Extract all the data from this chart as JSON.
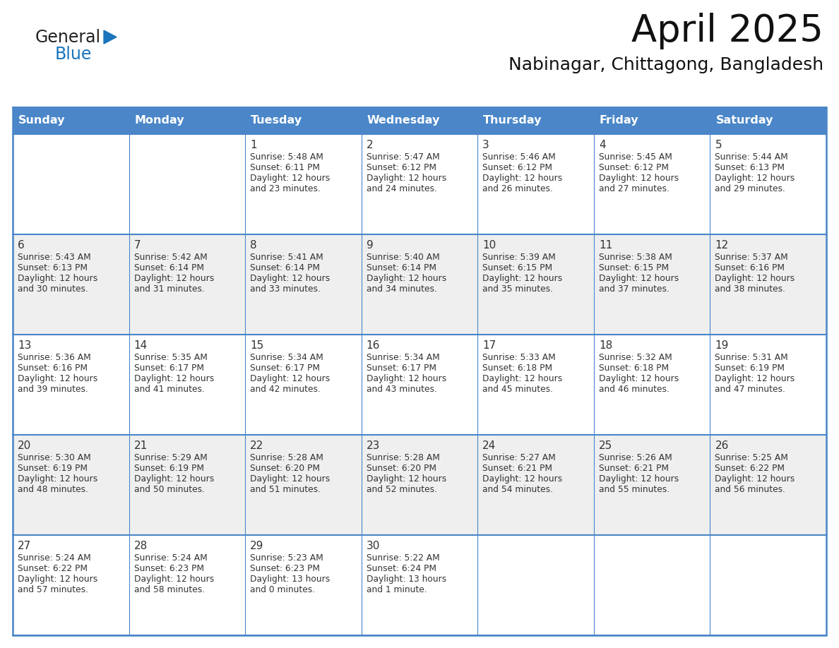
{
  "title": "April 2025",
  "subtitle": "Nabinagar, Chittagong, Bangladesh",
  "header_color": "#4a86c8",
  "header_text_color": "#FFFFFF",
  "cell_bg_color": "#FFFFFF",
  "alt_cell_bg_color": "#EFEFEF",
  "border_color": "#4a86c8",
  "text_color": "#333333",
  "days_of_week": [
    "Sunday",
    "Monday",
    "Tuesday",
    "Wednesday",
    "Thursday",
    "Friday",
    "Saturday"
  ],
  "calendar_data": [
    [
      {
        "day": "",
        "sunrise": "",
        "sunset": "",
        "daylight": ""
      },
      {
        "day": "",
        "sunrise": "",
        "sunset": "",
        "daylight": ""
      },
      {
        "day": "1",
        "sunrise": "Sunrise: 5:48 AM",
        "sunset": "Sunset: 6:11 PM",
        "daylight": "Daylight: 12 hours\nand 23 minutes."
      },
      {
        "day": "2",
        "sunrise": "Sunrise: 5:47 AM",
        "sunset": "Sunset: 6:12 PM",
        "daylight": "Daylight: 12 hours\nand 24 minutes."
      },
      {
        "day": "3",
        "sunrise": "Sunrise: 5:46 AM",
        "sunset": "Sunset: 6:12 PM",
        "daylight": "Daylight: 12 hours\nand 26 minutes."
      },
      {
        "day": "4",
        "sunrise": "Sunrise: 5:45 AM",
        "sunset": "Sunset: 6:12 PM",
        "daylight": "Daylight: 12 hours\nand 27 minutes."
      },
      {
        "day": "5",
        "sunrise": "Sunrise: 5:44 AM",
        "sunset": "Sunset: 6:13 PM",
        "daylight": "Daylight: 12 hours\nand 29 minutes."
      }
    ],
    [
      {
        "day": "6",
        "sunrise": "Sunrise: 5:43 AM",
        "sunset": "Sunset: 6:13 PM",
        "daylight": "Daylight: 12 hours\nand 30 minutes."
      },
      {
        "day": "7",
        "sunrise": "Sunrise: 5:42 AM",
        "sunset": "Sunset: 6:14 PM",
        "daylight": "Daylight: 12 hours\nand 31 minutes."
      },
      {
        "day": "8",
        "sunrise": "Sunrise: 5:41 AM",
        "sunset": "Sunset: 6:14 PM",
        "daylight": "Daylight: 12 hours\nand 33 minutes."
      },
      {
        "day": "9",
        "sunrise": "Sunrise: 5:40 AM",
        "sunset": "Sunset: 6:14 PM",
        "daylight": "Daylight: 12 hours\nand 34 minutes."
      },
      {
        "day": "10",
        "sunrise": "Sunrise: 5:39 AM",
        "sunset": "Sunset: 6:15 PM",
        "daylight": "Daylight: 12 hours\nand 35 minutes."
      },
      {
        "day": "11",
        "sunrise": "Sunrise: 5:38 AM",
        "sunset": "Sunset: 6:15 PM",
        "daylight": "Daylight: 12 hours\nand 37 minutes."
      },
      {
        "day": "12",
        "sunrise": "Sunrise: 5:37 AM",
        "sunset": "Sunset: 6:16 PM",
        "daylight": "Daylight: 12 hours\nand 38 minutes."
      }
    ],
    [
      {
        "day": "13",
        "sunrise": "Sunrise: 5:36 AM",
        "sunset": "Sunset: 6:16 PM",
        "daylight": "Daylight: 12 hours\nand 39 minutes."
      },
      {
        "day": "14",
        "sunrise": "Sunrise: 5:35 AM",
        "sunset": "Sunset: 6:17 PM",
        "daylight": "Daylight: 12 hours\nand 41 minutes."
      },
      {
        "day": "15",
        "sunrise": "Sunrise: 5:34 AM",
        "sunset": "Sunset: 6:17 PM",
        "daylight": "Daylight: 12 hours\nand 42 minutes."
      },
      {
        "day": "16",
        "sunrise": "Sunrise: 5:34 AM",
        "sunset": "Sunset: 6:17 PM",
        "daylight": "Daylight: 12 hours\nand 43 minutes."
      },
      {
        "day": "17",
        "sunrise": "Sunrise: 5:33 AM",
        "sunset": "Sunset: 6:18 PM",
        "daylight": "Daylight: 12 hours\nand 45 minutes."
      },
      {
        "day": "18",
        "sunrise": "Sunrise: 5:32 AM",
        "sunset": "Sunset: 6:18 PM",
        "daylight": "Daylight: 12 hours\nand 46 minutes."
      },
      {
        "day": "19",
        "sunrise": "Sunrise: 5:31 AM",
        "sunset": "Sunset: 6:19 PM",
        "daylight": "Daylight: 12 hours\nand 47 minutes."
      }
    ],
    [
      {
        "day": "20",
        "sunrise": "Sunrise: 5:30 AM",
        "sunset": "Sunset: 6:19 PM",
        "daylight": "Daylight: 12 hours\nand 48 minutes."
      },
      {
        "day": "21",
        "sunrise": "Sunrise: 5:29 AM",
        "sunset": "Sunset: 6:19 PM",
        "daylight": "Daylight: 12 hours\nand 50 minutes."
      },
      {
        "day": "22",
        "sunrise": "Sunrise: 5:28 AM",
        "sunset": "Sunset: 6:20 PM",
        "daylight": "Daylight: 12 hours\nand 51 minutes."
      },
      {
        "day": "23",
        "sunrise": "Sunrise: 5:28 AM",
        "sunset": "Sunset: 6:20 PM",
        "daylight": "Daylight: 12 hours\nand 52 minutes."
      },
      {
        "day": "24",
        "sunrise": "Sunrise: 5:27 AM",
        "sunset": "Sunset: 6:21 PM",
        "daylight": "Daylight: 12 hours\nand 54 minutes."
      },
      {
        "day": "25",
        "sunrise": "Sunrise: 5:26 AM",
        "sunset": "Sunset: 6:21 PM",
        "daylight": "Daylight: 12 hours\nand 55 minutes."
      },
      {
        "day": "26",
        "sunrise": "Sunrise: 5:25 AM",
        "sunset": "Sunset: 6:22 PM",
        "daylight": "Daylight: 12 hours\nand 56 minutes."
      }
    ],
    [
      {
        "day": "27",
        "sunrise": "Sunrise: 5:24 AM",
        "sunset": "Sunset: 6:22 PM",
        "daylight": "Daylight: 12 hours\nand 57 minutes."
      },
      {
        "day": "28",
        "sunrise": "Sunrise: 5:24 AM",
        "sunset": "Sunset: 6:23 PM",
        "daylight": "Daylight: 12 hours\nand 58 minutes."
      },
      {
        "day": "29",
        "sunrise": "Sunrise: 5:23 AM",
        "sunset": "Sunset: 6:23 PM",
        "daylight": "Daylight: 13 hours\nand 0 minutes."
      },
      {
        "day": "30",
        "sunrise": "Sunrise: 5:22 AM",
        "sunset": "Sunset: 6:24 PM",
        "daylight": "Daylight: 13 hours\nand 1 minute."
      },
      {
        "day": "",
        "sunrise": "",
        "sunset": "",
        "daylight": ""
      },
      {
        "day": "",
        "sunrise": "",
        "sunset": "",
        "daylight": ""
      },
      {
        "day": "",
        "sunrise": "",
        "sunset": "",
        "daylight": ""
      }
    ]
  ],
  "logo_text1": "General",
  "logo_text2": "Blue",
  "logo_text1_color": "#222222",
  "logo_text2_color": "#1a75bc",
  "logo_triangle_color": "#1a75bc",
  "fig_width": 11.88,
  "fig_height": 9.18,
  "dpi": 100
}
